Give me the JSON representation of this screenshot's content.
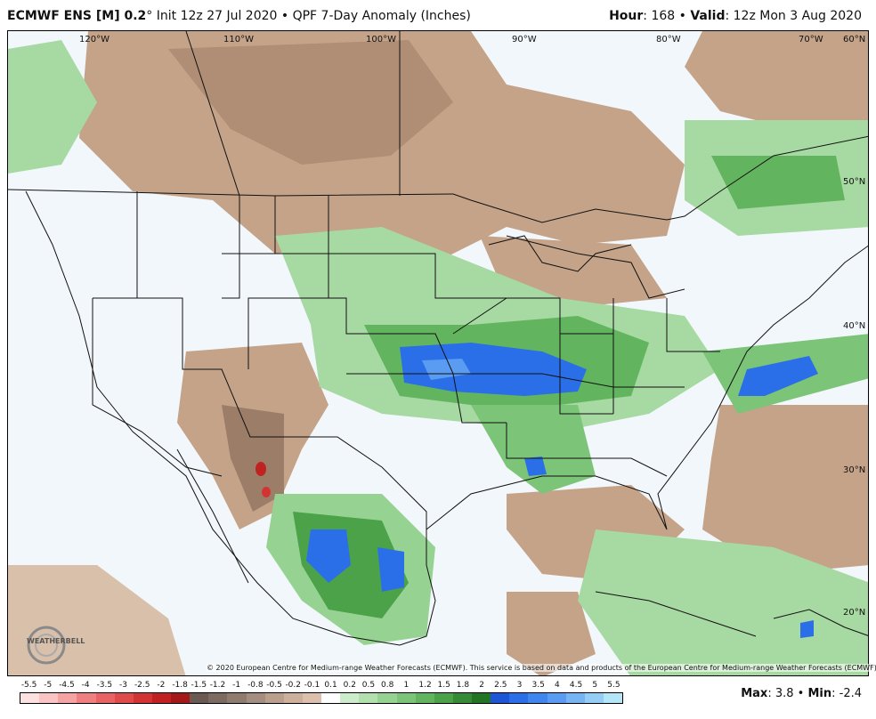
{
  "header": {
    "model": "ECMWF ENS [M] 0.2",
    "degree": "°",
    "init": " Init 12z 27 Jul 2020 • QPF 7-Day Anomaly (Inches)",
    "hour_label": "Hour",
    "hour_value": ": 168 • ",
    "valid_label": "Valid",
    "valid_value": ": 12z Mon 3 Aug 2020"
  },
  "map": {
    "longitudes": [
      "120°W",
      "110°W",
      "100°W",
      "90°W",
      "80°W",
      "70°W",
      "60°N"
    ],
    "latitudes": [
      "50°N",
      "40°N",
      "30°N",
      "20°N"
    ],
    "copyright": "© 2020 European Centre for Medium-range Weather Forecasts (ECMWF). This service is based on data and products of the European Centre for Medium-range Weather Forecasts (ECMWF).",
    "logo_text": "WEATHERBELL"
  },
  "legend": {
    "ticks": [
      "-5.5",
      "-5",
      "-4.5",
      "-4",
      "-3.5",
      "-3",
      "-2.5",
      "-2",
      "-1.8",
      "-1.5",
      "-1.2",
      "-1",
      "-0.8",
      "-0.5",
      "-0.2",
      "-0.1",
      "0.1",
      "0.2",
      "0.5",
      "0.8",
      "1",
      "1.2",
      "1.5",
      "1.8",
      "2",
      "2.5",
      "3",
      "3.5",
      "4",
      "4.5",
      "5",
      "5.5"
    ],
    "colors": [
      "#fde0e0",
      "#fbc4c4",
      "#f6a3a3",
      "#f08080",
      "#e86464",
      "#df4a4a",
      "#d23434",
      "#c02222",
      "#a51818",
      "#6b5a52",
      "#7d6a60",
      "#907b6f",
      "#a58d7f",
      "#bb9f8d",
      "#ccb09c",
      "#dcc0ad",
      "#ffffff",
      "#cdeccb",
      "#b2e0ae",
      "#96d392",
      "#7cc478",
      "#63b45f",
      "#4ba249",
      "#368c36",
      "#237525",
      "#1e56d8",
      "#2b6fe8",
      "#3f86ee",
      "#5a9cf1",
      "#76b4f4",
      "#94cdf6",
      "#b3e6f8"
    ],
    "max_label": "Max",
    "max_value": ": 3.8 • ",
    "min_label": "Min",
    "min_value": ": -2.4"
  }
}
